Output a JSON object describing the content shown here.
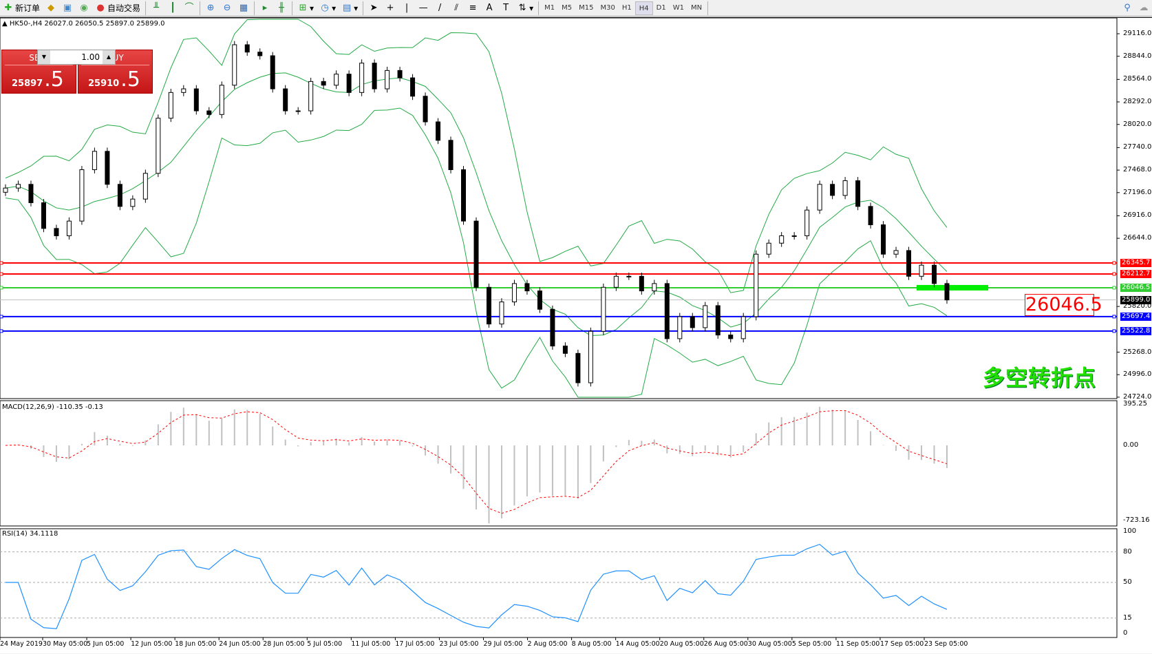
{
  "toolbar": {
    "new_order": "新订单",
    "auto_trading": "自动交易",
    "timeframes": [
      "M1",
      "M5",
      "M15",
      "M30",
      "H1",
      "H4",
      "D1",
      "W1",
      "MN"
    ],
    "active_timeframe": "H4"
  },
  "chart": {
    "header": "HK50-,H4  26027.0 26050.5 25897.0 25899.0"
  },
  "trade_panel": {
    "sell_label": "SELL",
    "buy_label": "BUY",
    "lot": "1.00",
    "sell_main": "25897",
    "sell_pip": ".5",
    "buy_main": "25910",
    "buy_pip": ".5"
  },
  "price_axis": [
    "29116.0",
    "28844.0",
    "28564.0",
    "28292.0",
    "28020.0",
    "27740.0",
    "27468.0",
    "27196.0",
    "26916.0",
    "26644.0",
    "25820.0",
    "25268.0",
    "24996.0",
    "24724.0"
  ],
  "levels": [
    {
      "price": "26345.7",
      "color": "#ff0000"
    },
    {
      "price": "26212.7",
      "color": "#ff0000"
    },
    {
      "price": "26046.5",
      "color": "#33cc33"
    },
    {
      "price": "25899.0",
      "color": "#000000"
    },
    {
      "price": "25697.4",
      "color": "#0000ff"
    },
    {
      "price": "25522.8",
      "color": "#0000ff"
    }
  ],
  "annotation": {
    "price_box": "26046.5",
    "text": "多空转折点",
    "text_color": "#22e000"
  },
  "macd": {
    "label": "MACD(12,26,9) -110.35 -0.13",
    "axis": [
      "395.25",
      "0.00",
      "-723.16"
    ],
    "max": 395.25,
    "min": -723.16
  },
  "rsi": {
    "label": "RSI(14) 34.1118",
    "axis": [
      "100",
      "80",
      "50",
      "15",
      "0"
    ],
    "levels": [
      80,
      50,
      15
    ]
  },
  "time_axis": [
    "24 May 2019",
    "30 May 05:00",
    "5 Jun 05:00",
    "12 Jun 05:00",
    "18 Jun 05:00",
    "24 Jun 05:00",
    "28 Jun 05:00",
    "5 Jul 05:00",
    "11 Jul 05:00",
    "17 Jul 05:00",
    "23 Jul 05:00",
    "29 Jul 05:00",
    "2 Aug 05:00",
    "8 Aug 05:00",
    "14 Aug 05:00",
    "20 Aug 05:00",
    "26 Aug 05:00",
    "30 Aug 05:00",
    "5 Sep 05:00",
    "11 Sep 05:00",
    "17 Sep 05:00",
    "23 Sep 05:00"
  ],
  "chart_data": {
    "type": "candlestick",
    "symbol": "HK50-",
    "timeframe": "H4",
    "ylim": [
      24724,
      29116
    ],
    "closes": [
      27251,
      27296,
      27074,
      26763,
      26674,
      26852,
      27473,
      27695,
      27296,
      27029,
      27118,
      27429,
      28095,
      28406,
      28450,
      28184,
      28140,
      28494,
      28983,
      28894,
      28850,
      28450,
      28184,
      28184,
      28539,
      28494,
      28628,
      28406,
      28761,
      28450,
      28672,
      28583,
      28361,
      28051,
      27828,
      27473,
      26852,
      26052,
      25608,
      25875,
      26097,
      26008,
      25786,
      25342,
      25253,
      24898,
      25520,
      26052,
      26185,
      26185,
      26008,
      26097,
      25431,
      25697,
      25564,
      25830,
      25475,
      25431,
      25697,
      26452,
      26585,
      26674,
      26674,
      26985,
      27296,
      27162,
      27340,
      27029,
      26807,
      26452,
      26496,
      26185,
      26319,
      26097,
      25899
    ],
    "colors": {
      "band": "#22aa44",
      "macd_hist": "#c0c0c0",
      "macd_signal": "#ff0000",
      "rsi": "#1e90ff"
    }
  }
}
